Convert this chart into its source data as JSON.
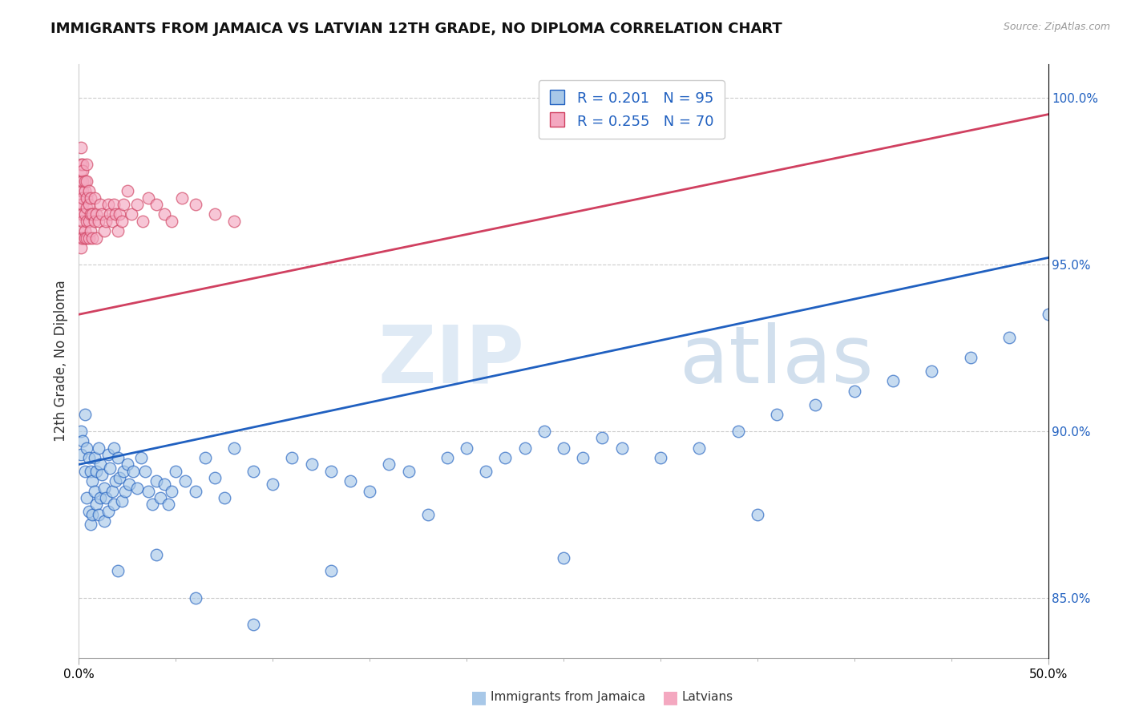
{
  "title": "IMMIGRANTS FROM JAMAICA VS LATVIAN 12TH GRADE, NO DIPLOMA CORRELATION CHART",
  "source_text": "Source: ZipAtlas.com",
  "ylabel": "12th Grade, No Diploma",
  "r_blue": 0.201,
  "n_blue": 95,
  "r_pink": 0.255,
  "n_pink": 70,
  "blue_color": "#a8c8e8",
  "pink_color": "#f4a8c0",
  "trendline_blue": "#2060c0",
  "trendline_pink": "#d04060",
  "xmin": 0.0,
  "xmax": 0.5,
  "ymin": 0.832,
  "ymax": 1.01,
  "yticks": [
    0.85,
    0.9,
    0.95,
    1.0
  ],
  "blue_x": [
    0.001,
    0.001,
    0.002,
    0.003,
    0.003,
    0.004,
    0.004,
    0.005,
    0.005,
    0.006,
    0.006,
    0.007,
    0.007,
    0.008,
    0.008,
    0.009,
    0.009,
    0.01,
    0.01,
    0.011,
    0.011,
    0.012,
    0.013,
    0.013,
    0.014,
    0.015,
    0.015,
    0.016,
    0.017,
    0.018,
    0.018,
    0.019,
    0.02,
    0.021,
    0.022,
    0.023,
    0.024,
    0.025,
    0.026,
    0.028,
    0.03,
    0.032,
    0.034,
    0.036,
    0.038,
    0.04,
    0.042,
    0.044,
    0.046,
    0.048,
    0.05,
    0.055,
    0.06,
    0.065,
    0.07,
    0.075,
    0.08,
    0.09,
    0.1,
    0.11,
    0.12,
    0.13,
    0.14,
    0.15,
    0.16,
    0.17,
    0.19,
    0.2,
    0.21,
    0.22,
    0.23,
    0.24,
    0.25,
    0.26,
    0.27,
    0.28,
    0.3,
    0.32,
    0.34,
    0.36,
    0.38,
    0.4,
    0.42,
    0.44,
    0.46,
    0.48,
    0.5,
    0.35,
    0.25,
    0.18,
    0.13,
    0.09,
    0.06,
    0.04,
    0.02
  ],
  "blue_y": [
    0.9,
    0.893,
    0.897,
    0.905,
    0.888,
    0.895,
    0.88,
    0.892,
    0.876,
    0.888,
    0.872,
    0.885,
    0.875,
    0.892,
    0.882,
    0.888,
    0.878,
    0.895,
    0.875,
    0.89,
    0.88,
    0.887,
    0.883,
    0.873,
    0.88,
    0.893,
    0.876,
    0.889,
    0.882,
    0.895,
    0.878,
    0.885,
    0.892,
    0.886,
    0.879,
    0.888,
    0.882,
    0.89,
    0.884,
    0.888,
    0.883,
    0.892,
    0.888,
    0.882,
    0.878,
    0.885,
    0.88,
    0.884,
    0.878,
    0.882,
    0.888,
    0.885,
    0.882,
    0.892,
    0.886,
    0.88,
    0.895,
    0.888,
    0.884,
    0.892,
    0.89,
    0.888,
    0.885,
    0.882,
    0.89,
    0.888,
    0.892,
    0.895,
    0.888,
    0.892,
    0.895,
    0.9,
    0.895,
    0.892,
    0.898,
    0.895,
    0.892,
    0.895,
    0.9,
    0.905,
    0.908,
    0.912,
    0.915,
    0.918,
    0.922,
    0.928,
    0.935,
    0.875,
    0.862,
    0.875,
    0.858,
    0.842,
    0.85,
    0.863,
    0.858
  ],
  "pink_x": [
    0.001,
    0.001,
    0.001,
    0.001,
    0.001,
    0.001,
    0.001,
    0.001,
    0.001,
    0.001,
    0.001,
    0.002,
    0.002,
    0.002,
    0.002,
    0.002,
    0.002,
    0.002,
    0.002,
    0.002,
    0.003,
    0.003,
    0.003,
    0.003,
    0.003,
    0.004,
    0.004,
    0.004,
    0.004,
    0.004,
    0.004,
    0.005,
    0.005,
    0.005,
    0.005,
    0.006,
    0.006,
    0.006,
    0.007,
    0.007,
    0.008,
    0.008,
    0.009,
    0.009,
    0.01,
    0.011,
    0.012,
    0.013,
    0.014,
    0.015,
    0.016,
    0.017,
    0.018,
    0.019,
    0.02,
    0.021,
    0.022,
    0.023,
    0.025,
    0.027,
    0.03,
    0.033,
    0.036,
    0.04,
    0.044,
    0.048,
    0.053,
    0.06,
    0.07,
    0.08
  ],
  "pink_y": [
    0.975,
    0.97,
    0.965,
    0.96,
    0.958,
    0.955,
    0.968,
    0.972,
    0.978,
    0.98,
    0.985,
    0.968,
    0.972,
    0.965,
    0.958,
    0.975,
    0.98,
    0.963,
    0.97,
    0.978,
    0.965,
    0.96,
    0.972,
    0.958,
    0.975,
    0.963,
    0.958,
    0.97,
    0.975,
    0.967,
    0.98,
    0.963,
    0.968,
    0.972,
    0.958,
    0.965,
    0.97,
    0.96,
    0.965,
    0.958,
    0.963,
    0.97,
    0.965,
    0.958,
    0.963,
    0.968,
    0.965,
    0.96,
    0.963,
    0.968,
    0.965,
    0.963,
    0.968,
    0.965,
    0.96,
    0.965,
    0.963,
    0.968,
    0.972,
    0.965,
    0.968,
    0.963,
    0.97,
    0.968,
    0.965,
    0.963,
    0.97,
    0.968,
    0.965,
    0.963
  ],
  "blue_trendline_y0": 0.89,
  "blue_trendline_y1": 0.952,
  "pink_trendline_y0": 0.935,
  "pink_trendline_y1": 0.995
}
